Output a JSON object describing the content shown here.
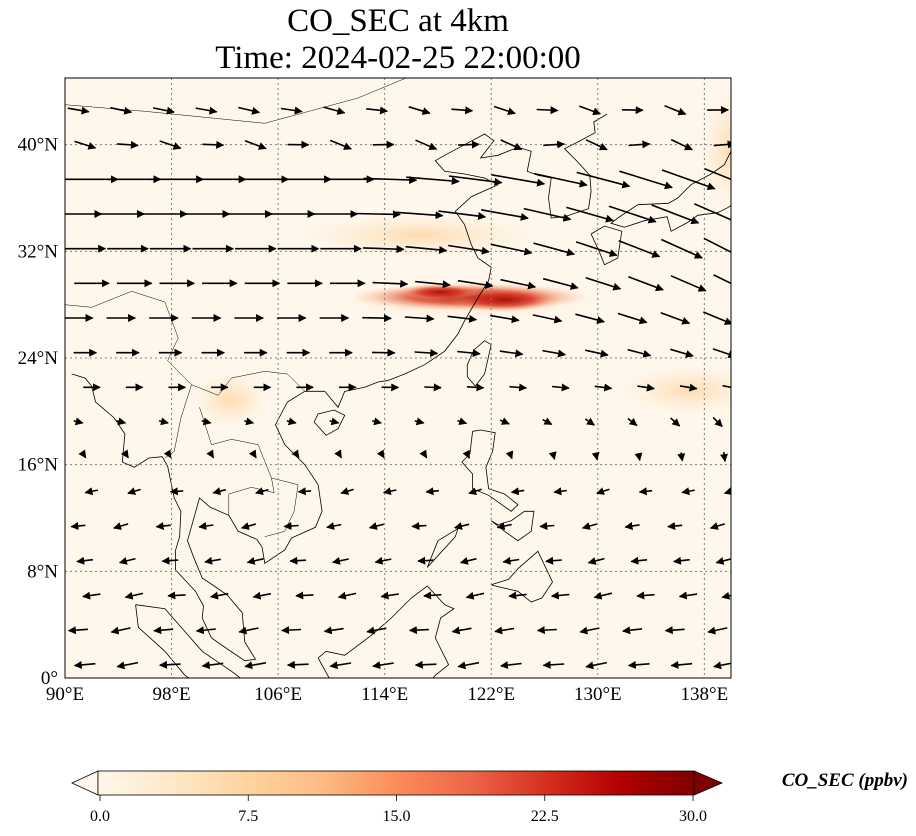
{
  "title": {
    "line1": "CO_SEC at 4km",
    "line2": "Time: 2024-02-25 22:00:00"
  },
  "map": {
    "extent": {
      "lon": [
        90,
        140
      ],
      "lat": [
        0,
        45
      ]
    },
    "lon_ticks": [
      "90°E",
      "98°E",
      "106°E",
      "114°E",
      "122°E",
      "130°E",
      "138°E"
    ],
    "lat_ticks": [
      "0°",
      "8°N",
      "16°N",
      "24°N",
      "32°N",
      "40°N"
    ],
    "gridlines": "dotted"
  },
  "colorbar": {
    "label": "CO_SEC (ppbv)",
    "ticks": [
      "0.0",
      "7.5",
      "15.0",
      "22.5",
      "30.0"
    ],
    "range": [
      0,
      30
    ],
    "extend": "both",
    "colormap": [
      "#fff7ec",
      "#fee8c8",
      "#fdd49e",
      "#fdbb84",
      "#fc8d59",
      "#ef6548",
      "#d7301f",
      "#b30000",
      "#7f0000"
    ]
  },
  "colors": {
    "background_low": "#fff7ec",
    "plume_high": "#7f0000",
    "arrows": "#000000",
    "coastline": "#000000",
    "grid": "#808080"
  }
}
